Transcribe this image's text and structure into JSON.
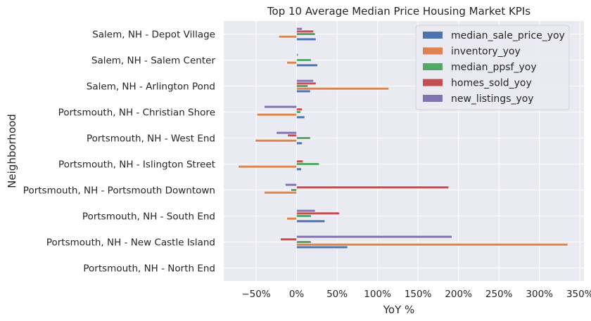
{
  "chart_data": {
    "type": "bar",
    "orientation": "horizontal",
    "title": "Top 10 Average Median Price Housing Market KPIs",
    "xlabel": "YoY %",
    "ylabel": "Neighborhood",
    "xlim": [
      -0.9,
      3.55
    ],
    "xticks": [
      -0.5,
      0,
      0.5,
      1.0,
      1.5,
      2.0,
      2.5,
      3.0,
      3.5
    ],
    "xtick_labels": [
      "−50%",
      "0%",
      "50%",
      "100%",
      "150%",
      "200%",
      "250%",
      "300%",
      "350%"
    ],
    "grid": true,
    "legend_position": "top-right",
    "categories": [
      "Portsmouth, NH - North End",
      "Portsmouth, NH - New Castle Island",
      "Portsmouth, NH - South End",
      "Portsmouth, NH - Portsmouth Downtown",
      "Portsmouth, NH - Islington Street",
      "Portsmouth, NH - West End",
      "Portsmouth, NH - Christian Shore",
      "Salem, NH - Arlington Pond",
      "Salem, NH - Salem Center",
      "Salem, NH - Depot Village"
    ],
    "series": [
      {
        "name": "median_sale_price_yoy",
        "color": "#4c72b0",
        "values": [
          0,
          0.63,
          0.35,
          0,
          0.06,
          0.07,
          0.1,
          0.17,
          0.26,
          0.24
        ]
      },
      {
        "name": "inventory_yoy",
        "color": "#dd8452",
        "values": [
          0,
          3.35,
          -0.12,
          -0.4,
          -0.72,
          -0.51,
          -0.49,
          1.14,
          -0.12,
          -0.22
        ]
      },
      {
        "name": "median_ppsf_yoy",
        "color": "#55a868",
        "values": [
          0,
          0.18,
          0.18,
          -0.07,
          0.28,
          0.17,
          0.05,
          0.14,
          0.18,
          0.23
        ]
      },
      {
        "name": "homes_sold_yoy",
        "color": "#c44e52",
        "values": [
          0,
          -0.2,
          0.53,
          1.88,
          0.08,
          -0.11,
          0.07,
          0.24,
          0,
          0.21
        ]
      },
      {
        "name": "new_listings_yoy",
        "color": "#8172b3",
        "values": [
          0,
          1.92,
          0.23,
          -0.14,
          0,
          -0.25,
          -0.4,
          0.21,
          0.02,
          0.07
        ]
      }
    ]
  }
}
